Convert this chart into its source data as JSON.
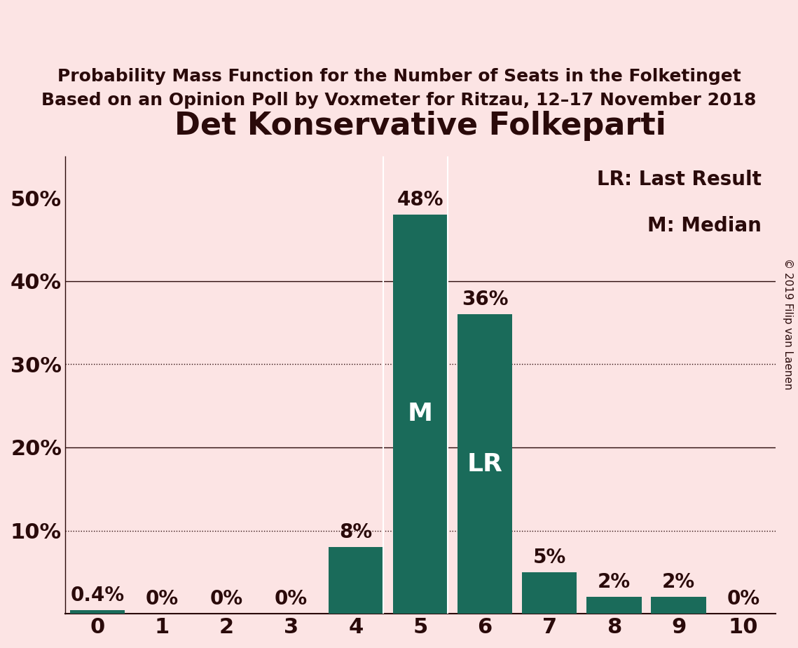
{
  "title": "Det Konservative Folkeparti",
  "subtitle1": "Probability Mass Function for the Number of Seats in the Folketinget",
  "subtitle2": "Based on an Opinion Poll by Voxmeter for Ritzau, 12–17 November 2018",
  "copyright": "© 2019 Filip van Laenen",
  "categories": [
    0,
    1,
    2,
    3,
    4,
    5,
    6,
    7,
    8,
    9,
    10
  ],
  "values": [
    0.4,
    0,
    0,
    0,
    8,
    48,
    36,
    5,
    2,
    2,
    0
  ],
  "bar_color": "#1a6b5a",
  "background_color": "#fce4e4",
  "ylim": [
    0,
    55
  ],
  "yticks": [
    0,
    10,
    20,
    30,
    40,
    50
  ],
  "ytick_labels": [
    "",
    "10%",
    "20%",
    "30%",
    "40%",
    "50%"
  ],
  "solid_gridlines": [
    20,
    40
  ],
  "dotted_gridlines": [
    10,
    30
  ],
  "legend_lr": "LR: Last Result",
  "legend_m": "M: Median",
  "median_bar": 5,
  "lr_bar": 6,
  "inside_labels": {
    "5": "M",
    "6": "LR"
  },
  "title_fontsize": 32,
  "subtitle_fontsize": 18,
  "bar_label_fontsize": 20,
  "inside_label_fontsize": 26,
  "axis_label_fontsize": 22,
  "legend_fontsize": 20,
  "copyright_fontsize": 11,
  "text_color": "#2a0a0a",
  "bar_label_color": "#2a0a0a",
  "inside_label_color": "#ffffff"
}
